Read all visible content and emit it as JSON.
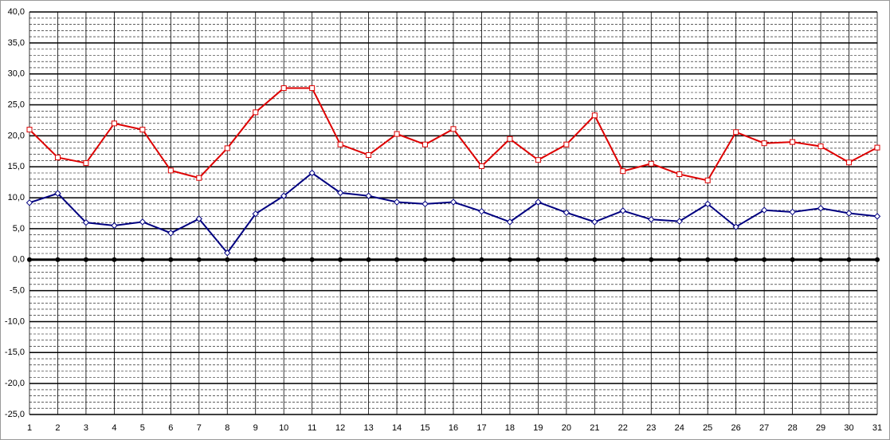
{
  "chart_data": {
    "type": "line",
    "categories": [
      "1",
      "2",
      "3",
      "4",
      "5",
      "6",
      "7",
      "8",
      "9",
      "10",
      "11",
      "12",
      "13",
      "14",
      "15",
      "16",
      "17",
      "18",
      "19",
      "20",
      "21",
      "22",
      "23",
      "24",
      "25",
      "26",
      "27",
      "28",
      "29",
      "30",
      "31"
    ],
    "series": [
      {
        "color": "#dd0000",
        "marker": "square",
        "values": [
          21.0,
          16.5,
          15.6,
          22.0,
          21.0,
          14.4,
          13.2,
          18.0,
          23.8,
          27.7,
          27.7,
          18.6,
          16.9,
          20.3,
          18.6,
          21.1,
          15.1,
          19.5,
          16.1,
          18.6,
          23.3,
          14.3,
          15.5,
          13.8,
          12.8,
          20.6,
          18.8,
          19.0,
          18.3,
          15.7,
          18.1
        ]
      },
      {
        "color": "#000080",
        "marker": "diamond",
        "values": [
          9.2,
          10.7,
          6.0,
          5.5,
          6.1,
          4.3,
          6.6,
          1.1,
          7.4,
          10.3,
          14.0,
          10.8,
          10.3,
          9.3,
          9.0,
          9.3,
          7.8,
          6.1,
          9.3,
          7.6,
          6.1,
          7.9,
          6.5,
          6.2,
          9.0,
          5.3,
          8.0,
          7.7,
          8.3,
          7.5,
          7.0
        ]
      }
    ],
    "ylim": [
      -25,
      40
    ],
    "yticks": [
      {
        "value": 40,
        "label": "40,0"
      },
      {
        "value": 35,
        "label": "35,0"
      },
      {
        "value": 30,
        "label": "30,0"
      },
      {
        "value": 25,
        "label": "25,0"
      },
      {
        "value": 20,
        "label": "20,0"
      },
      {
        "value": 15,
        "label": "15,0"
      },
      {
        "value": 10,
        "label": "10,0"
      },
      {
        "value": 5,
        "label": "5,0"
      },
      {
        "value": 0,
        "label": "0,0"
      },
      {
        "value": -5,
        "label": "-5,0"
      },
      {
        "value": -10,
        "label": "-10,0"
      },
      {
        "value": -15,
        "label": "-15,0"
      },
      {
        "value": -20,
        "label": "-20,0"
      },
      {
        "value": -25,
        "label": "-25,0"
      }
    ],
    "grid": true
  }
}
